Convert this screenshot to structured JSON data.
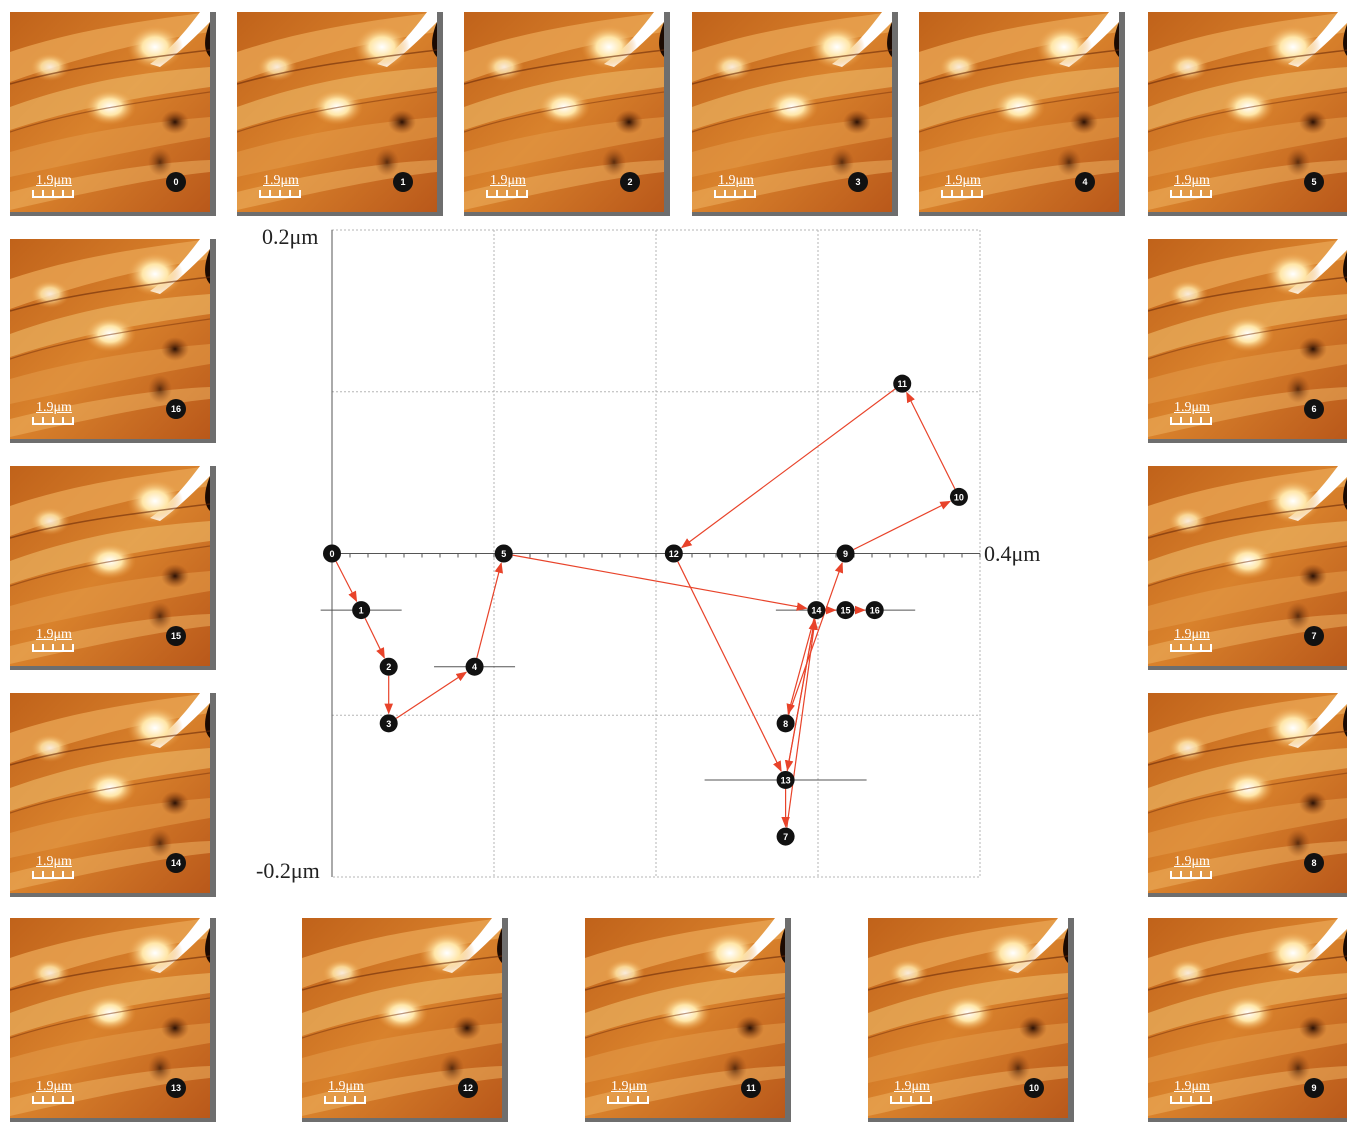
{
  "thumbnails": [
    {
      "frame": "0",
      "scale": "1.9μm"
    },
    {
      "frame": "1",
      "scale": "1.9μm"
    },
    {
      "frame": "2",
      "scale": "1.9μm"
    },
    {
      "frame": "3",
      "scale": "1.9μm"
    },
    {
      "frame": "4",
      "scale": "1.9μm"
    },
    {
      "frame": "5",
      "scale": "1.9μm"
    },
    {
      "frame": "6",
      "scale": "1.9μm"
    },
    {
      "frame": "7",
      "scale": "1.9μm"
    },
    {
      "frame": "8",
      "scale": "1.9μm"
    },
    {
      "frame": "9",
      "scale": "1.9μm"
    },
    {
      "frame": "10",
      "scale": "1.9μm"
    },
    {
      "frame": "11",
      "scale": "1.9μm"
    },
    {
      "frame": "12",
      "scale": "1.9μm"
    },
    {
      "frame": "13",
      "scale": "1.9μm"
    },
    {
      "frame": "14",
      "scale": "1.9μm"
    },
    {
      "frame": "15",
      "scale": "1.9μm"
    },
    {
      "frame": "16",
      "scale": "1.9μm"
    }
  ],
  "plot": {
    "y_top_label": "0.2μm",
    "y_bottom_label": "-0.2μm",
    "x_right_label": "0.4μm",
    "arrow_color": "#e8432a",
    "marker_color": "#111111"
  },
  "chart_data": {
    "type": "scatter",
    "xlim": [
      0,
      0.4
    ],
    "ylim": [
      -0.2,
      0.2
    ],
    "grid": true,
    "points": [
      {
        "label": "0",
        "x": 0.0,
        "y": 0.0
      },
      {
        "label": "1",
        "x": 0.018,
        "y": -0.035,
        "xerr": 0.025
      },
      {
        "label": "2",
        "x": 0.035,
        "y": -0.07
      },
      {
        "label": "3",
        "x": 0.035,
        "y": -0.105
      },
      {
        "label": "4",
        "x": 0.088,
        "y": -0.07,
        "xerr": 0.025
      },
      {
        "label": "5",
        "x": 0.106,
        "y": 0.0
      },
      {
        "label": "7",
        "x": 0.28,
        "y": -0.175
      },
      {
        "label": "8",
        "x": 0.28,
        "y": -0.105
      },
      {
        "label": "9",
        "x": 0.317,
        "y": 0.0
      },
      {
        "label": "10",
        "x": 0.387,
        "y": 0.035
      },
      {
        "label": "11",
        "x": 0.352,
        "y": 0.105
      },
      {
        "label": "12",
        "x": 0.211,
        "y": 0.0
      },
      {
        "label": "13",
        "x": 0.28,
        "y": -0.14,
        "xerr": 0.05
      },
      {
        "label": "14",
        "x": 0.299,
        "y": -0.035,
        "xerr": 0.025
      },
      {
        "label": "15",
        "x": 0.317,
        "y": -0.035
      },
      {
        "label": "16",
        "x": 0.335,
        "y": -0.035,
        "xerr": 0.025
      }
    ],
    "path": [
      "0",
      "1",
      "2",
      "3",
      "4",
      "5",
      "14",
      "13",
      "7",
      "14",
      "8",
      "9",
      "10",
      "11",
      "12",
      "13",
      "14",
      "15",
      "16"
    ]
  }
}
